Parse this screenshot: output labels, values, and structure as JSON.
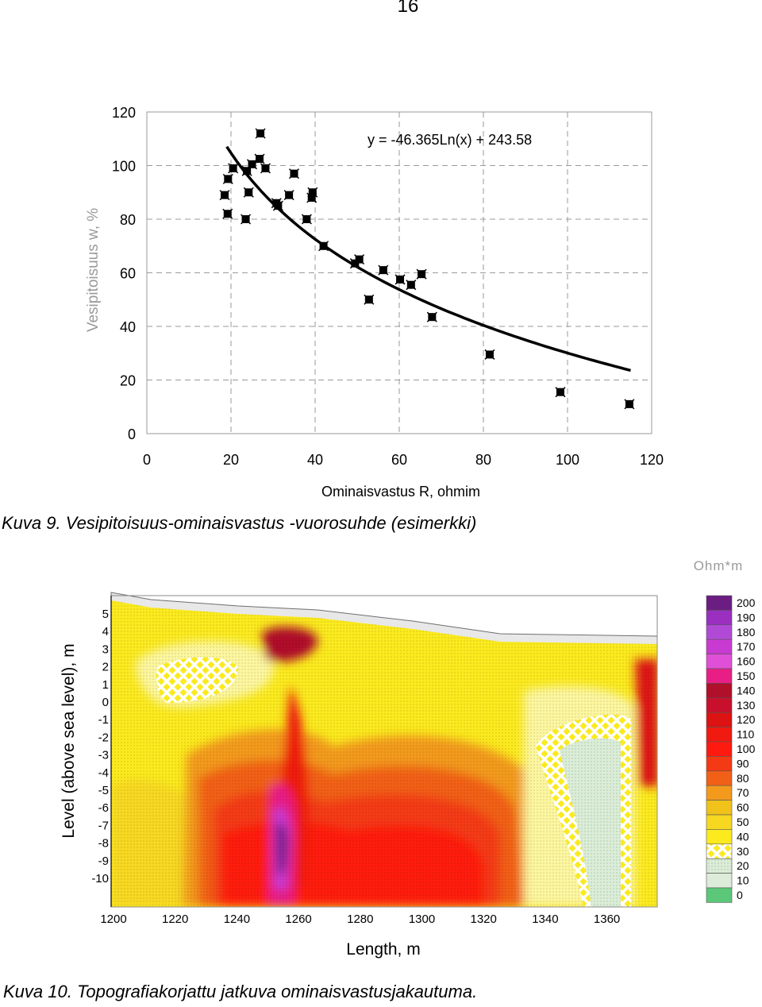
{
  "page": {
    "number": "16"
  },
  "figure1": {
    "caption": "Kuva 9. Vesipitoisuus-ominaisvastus -vuorosuhde (esimerkki)",
    "chart_data": {
      "type": "scatter",
      "xlabel": "Ominaisvastus R, ohmim",
      "ylabel": "Vesipitoisuus w, %",
      "xlim": [
        0,
        120
      ],
      "ylim": [
        0,
        120
      ],
      "xticks": [
        "0",
        "20",
        "40",
        "60",
        "80",
        "100",
        "120"
      ],
      "yticks": [
        "0",
        "20",
        "40",
        "60",
        "80",
        "100",
        "120"
      ],
      "grid": true,
      "trendline": {
        "equation": "y = -46.365Ln(x) + 243.58",
        "type": "logarithmic",
        "a": -46.365,
        "b": 243.58,
        "x_from": 19,
        "x_to": 115
      },
      "points": [
        [
          18.5,
          89
        ],
        [
          19.2,
          82
        ],
        [
          19.3,
          95
        ],
        [
          20.5,
          99
        ],
        [
          23.5,
          80
        ],
        [
          23.8,
          98
        ],
        [
          24.2,
          90
        ],
        [
          25,
          100.5
        ],
        [
          26.8,
          102.5
        ],
        [
          27,
          112
        ],
        [
          28.2,
          99
        ],
        [
          30.8,
          86
        ],
        [
          31.2,
          85
        ],
        [
          33.8,
          89
        ],
        [
          35,
          97
        ],
        [
          38,
          80
        ],
        [
          39.2,
          88
        ],
        [
          39.4,
          90
        ],
        [
          42,
          70
        ],
        [
          49.5,
          63.5
        ],
        [
          50.5,
          65
        ],
        [
          52.8,
          50
        ],
        [
          56.2,
          61
        ],
        [
          60.2,
          57.5
        ],
        [
          62.8,
          55.5
        ],
        [
          65.3,
          59.5
        ],
        [
          67.8,
          43.5
        ],
        [
          81.5,
          29.5
        ],
        [
          98.3,
          15.5
        ],
        [
          114.7,
          11
        ]
      ]
    }
  },
  "figure2": {
    "caption": "Kuva 10. Topografiakorjattu jatkuva ominaisvastusjakautuma.",
    "unit_label": "Ohm*m",
    "chart_data": {
      "type": "heatmap",
      "xlabel": "Length, m",
      "ylabel": "Level (above sea level), m",
      "xticks": [
        "1200",
        "1220",
        "1240",
        "1260",
        "1280",
        "1300",
        "1320",
        "1340",
        "1360"
      ],
      "yticks": [
        "5",
        "4",
        "3",
        "2",
        "1",
        "0",
        "-1",
        "-2",
        "-3",
        "-4",
        "-5",
        "-6",
        "-7",
        "-8",
        "-9",
        "-10"
      ],
      "legend_levels": [
        "200",
        "190",
        "180",
        "170",
        "160",
        "150",
        "140",
        "130",
        "120",
        "110",
        "100",
        "90",
        "80",
        "70",
        "60",
        "50",
        "40",
        "30",
        "20",
        "10",
        "0"
      ],
      "legend_colors": [
        "#6b1d82",
        "#9a2fc0",
        "#b04ad6",
        "#c93ad2",
        "#e04fd8",
        "#e81e86",
        "#b0102a",
        "#c8102c",
        "#dd1212",
        "#f01a10",
        "#ff1a10",
        "#f43a14",
        "#f26018",
        "#f39a1c",
        "#f0c21a",
        "#f7d820",
        "#fbea1e",
        "#fcf6a0",
        "#f5f2dc",
        "#dcecd8",
        "#5ac878"
      ]
    }
  }
}
